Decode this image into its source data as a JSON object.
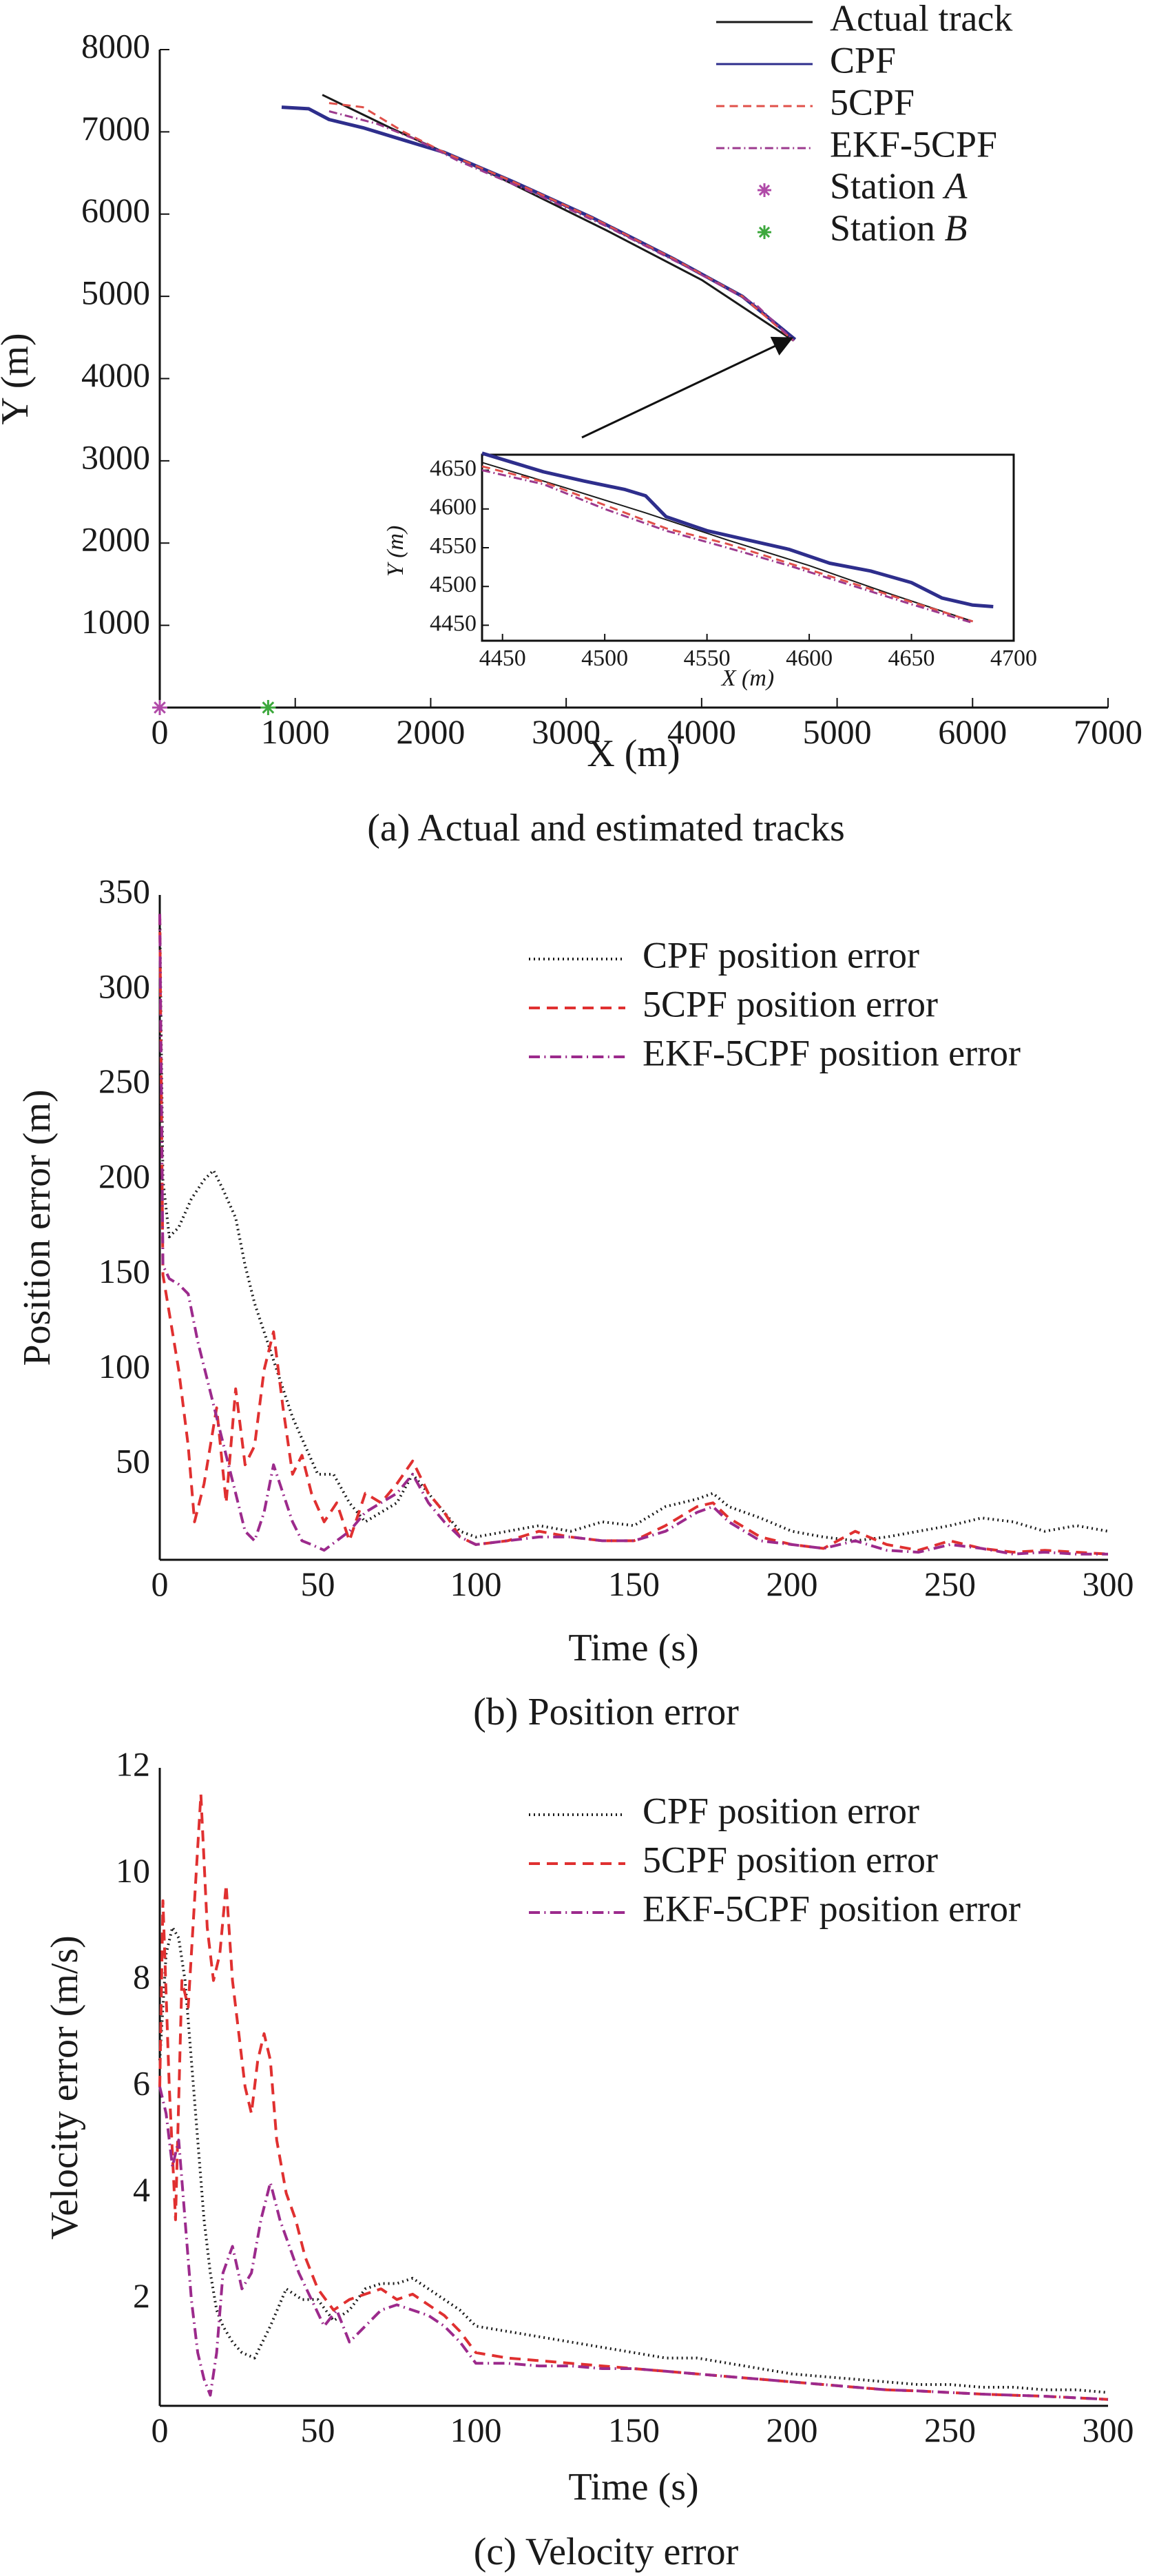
{
  "chart_data": [
    {
      "type": "line",
      "title": "Actual and estimated tracks",
      "caption": "(a) Actual and estimated tracks",
      "xlabel": "X (m)",
      "ylabel": "Y (m)",
      "xlim": [
        0,
        7000
      ],
      "ylim": [
        0,
        8000
      ],
      "xticks": [
        0,
        1000,
        2000,
        3000,
        4000,
        5000,
        6000,
        7000
      ],
      "xtick_labels": [
        "0",
        "1000",
        "2000",
        "3000",
        "4000",
        "5000",
        "6000",
        "7000"
      ],
      "yticks": [
        1000,
        2000,
        3000,
        4000,
        5000,
        6000,
        7000,
        8000
      ],
      "ytick_labels": [
        "1000",
        "2000",
        "3000",
        "4000",
        "5000",
        "6000",
        "7000",
        "8000"
      ],
      "legend_position": "top-right",
      "series": [
        {
          "name": "Actual track",
          "color": "#1a1a1a",
          "dash": "solid",
          "x": [
            1200,
            1700,
            2500,
            3300,
            4000,
            4680
          ],
          "y": [
            7450,
            7050,
            6450,
            5800,
            5200,
            4460
          ]
        },
        {
          "name": "CPF",
          "color": "#2e2e8c",
          "dash": "solid",
          "x": [
            900,
            1100,
            1250,
            1500,
            1800,
            2100,
            2600,
            3200,
            3800,
            4300,
            4690
          ],
          "y": [
            7300,
            7280,
            7150,
            7050,
            6900,
            6750,
            6400,
            5950,
            5450,
            5000,
            4475
          ]
        },
        {
          "name": "5CPF",
          "color": "#e0504a",
          "dash": "dashed",
          "x": [
            1250,
            1500,
            1800,
            2100,
            2600,
            3200,
            3800,
            4300,
            4680
          ],
          "y": [
            7350,
            7300,
            7000,
            6750,
            6400,
            5950,
            5450,
            5000,
            4460
          ]
        },
        {
          "name": "EKF-5CPF",
          "color": "#9c3a8e",
          "dash": "dashdot",
          "x": [
            1250,
            1600,
            1900,
            2200,
            2700,
            3300,
            3900,
            4400,
            4680
          ],
          "y": [
            7250,
            7100,
            6900,
            6650,
            6300,
            5850,
            5350,
            4900,
            4460
          ]
        },
        {
          "name": "Station A",
          "color": "#b04aa8",
          "marker": "asterisk",
          "x": [
            0
          ],
          "y": [
            0
          ]
        },
        {
          "name": "Station B",
          "color": "#3ca83c",
          "marker": "asterisk",
          "x": [
            800
          ],
          "y": [
            0
          ]
        }
      ],
      "arrow_to": {
        "x": 4650,
        "y": 4480
      },
      "inset": {
        "xlabel": "X (m)",
        "ylabel": "Y (m)",
        "xlim": [
          4440,
          4700
        ],
        "ylim": [
          4430,
          4670
        ],
        "xticks": [
          4450,
          4500,
          4550,
          4600,
          4650,
          4700
        ],
        "xtick_labels": [
          "4450",
          "4500",
          "4550",
          "4600",
          "4650",
          "4700"
        ],
        "yticks": [
          4450,
          4500,
          4550,
          4600,
          4650
        ],
        "ytick_labels": [
          "4450",
          "4500",
          "4550",
          "4600",
          "4650"
        ],
        "series": [
          {
            "name": "Actual track",
            "color": "#1a1a1a",
            "dash": "solid",
            "width": 2,
            "x": [
              4440,
              4480,
              4520,
              4560,
              4600,
              4640,
              4680
            ],
            "y": [
              4660,
              4628,
              4595,
              4560,
              4527,
              4490,
              4455
            ]
          },
          {
            "name": "CPF",
            "color": "#2e2e8c",
            "dash": "solid",
            "width": 5,
            "x": [
              4440,
              4455,
              4470,
              4490,
              4510,
              4520,
              4530,
              4550,
              4570,
              4590,
              4610,
              4630,
              4650,
              4665,
              4680,
              4690
            ],
            "y": [
              4672,
              4660,
              4648,
              4636,
              4625,
              4617,
              4590,
              4572,
              4560,
              4548,
              4530,
              4520,
              4505,
              4485,
              4476,
              4474
            ]
          },
          {
            "name": "5CPF",
            "color": "#e0504a",
            "dash": "dashed",
            "width": 3,
            "x": [
              4440,
              4470,
              4500,
              4530,
              4560,
              4590,
              4620,
              4650,
              4680
            ],
            "y": [
              4655,
              4635,
              4605,
              4575,
              4555,
              4530,
              4505,
              4480,
              4455
            ]
          },
          {
            "name": "EKF-5CPF",
            "color": "#9c3a8e",
            "dash": "dashdot",
            "width": 3,
            "x": [
              4440,
              4470,
              4500,
              4530,
              4560,
              4590,
              4620,
              4650,
              4680
            ],
            "y": [
              4650,
              4632,
              4600,
              4572,
              4550,
              4527,
              4502,
              4477,
              4453
            ]
          }
        ]
      }
    },
    {
      "type": "line",
      "title": "Position error",
      "caption": "(b) Position error",
      "xlabel": "Time (s)",
      "ylabel": "Position error (m)",
      "xlim": [
        0,
        300
      ],
      "ylim": [
        0,
        350
      ],
      "xticks": [
        0,
        50,
        100,
        150,
        200,
        250,
        300
      ],
      "xtick_labels": [
        "0",
        "50",
        "100",
        "150",
        "200",
        "250",
        "300"
      ],
      "yticks": [
        50,
        100,
        150,
        200,
        250,
        300,
        350
      ],
      "ytick_labels": [
        "50",
        "100",
        "150",
        "200",
        "250",
        "300",
        "350"
      ],
      "legend_position": "top-right",
      "series": [
        {
          "name": "CPF position error",
          "color": "#1a1a1a",
          "dash": "dotted",
          "x": [
            0,
            1,
            3,
            6,
            10,
            14,
            17,
            20,
            24,
            27,
            30,
            34,
            38,
            42,
            46,
            50,
            55,
            60,
            65,
            70,
            75,
            80,
            85,
            90,
            95,
            100,
            110,
            120,
            130,
            140,
            150,
            160,
            170,
            175,
            180,
            190,
            200,
            210,
            220,
            230,
            240,
            250,
            260,
            270,
            280,
            290,
            300
          ],
          "y": [
            340,
            200,
            170,
            175,
            190,
            200,
            205,
            195,
            180,
            155,
            135,
            115,
            95,
            75,
            60,
            45,
            45,
            30,
            20,
            25,
            30,
            45,
            35,
            25,
            15,
            12,
            15,
            18,
            15,
            20,
            18,
            28,
            32,
            35,
            28,
            22,
            15,
            12,
            10,
            12,
            15,
            18,
            22,
            20,
            15,
            18,
            15
          ]
        },
        {
          "name": "5CPF position error",
          "color": "#e03030",
          "dash": "dashed",
          "x": [
            0,
            1,
            3,
            6,
            9,
            11,
            14,
            18,
            21,
            24,
            27,
            30,
            33,
            36,
            39,
            42,
            45,
            48,
            52,
            56,
            60,
            65,
            70,
            75,
            80,
            85,
            90,
            95,
            100,
            110,
            120,
            130,
            140,
            150,
            160,
            170,
            175,
            180,
            190,
            200,
            210,
            220,
            230,
            240,
            250,
            260,
            270,
            280,
            290,
            300
          ],
          "y": [
            340,
            150,
            130,
            100,
            60,
            20,
            40,
            80,
            30,
            90,
            50,
            60,
            100,
            120,
            80,
            45,
            55,
            35,
            20,
            30,
            10,
            35,
            30,
            40,
            52,
            35,
            25,
            12,
            8,
            10,
            15,
            12,
            10,
            10,
            18,
            28,
            30,
            22,
            12,
            8,
            6,
            15,
            8,
            5,
            10,
            6,
            4,
            5,
            4,
            3
          ]
        },
        {
          "name": "EKF-5CPF position error",
          "color": "#9c2a8c",
          "dash": "dashdot",
          "x": [
            0,
            1,
            3,
            6,
            9,
            12,
            15,
            18,
            21,
            24,
            27,
            30,
            33,
            36,
            39,
            42,
            45,
            48,
            52,
            56,
            60,
            65,
            70,
            75,
            80,
            85,
            90,
            95,
            100,
            110,
            120,
            130,
            140,
            150,
            160,
            170,
            175,
            180,
            190,
            200,
            210,
            220,
            230,
            240,
            250,
            260,
            270,
            280,
            290,
            300
          ],
          "y": [
            340,
            155,
            148,
            145,
            140,
            115,
            95,
            75,
            55,
            35,
            15,
            10,
            25,
            50,
            35,
            20,
            10,
            8,
            5,
            10,
            15,
            25,
            30,
            35,
            45,
            30,
            20,
            12,
            8,
            10,
            12,
            12,
            10,
            10,
            15,
            25,
            28,
            20,
            10,
            8,
            6,
            10,
            5,
            4,
            8,
            6,
            3,
            4,
            3,
            3
          ]
        }
      ]
    },
    {
      "type": "line",
      "title": "Velocity error",
      "caption": "(c) Velocity error",
      "xlabel": "Time (s)",
      "ylabel": "Velocity error (m/s)",
      "xlim": [
        0,
        300
      ],
      "ylim": [
        0,
        12
      ],
      "xticks": [
        0,
        50,
        100,
        150,
        200,
        250,
        300
      ],
      "xtick_labels": [
        "0",
        "50",
        "100",
        "150",
        "200",
        "250",
        "300"
      ],
      "yticks": [
        2,
        4,
        6,
        8,
        10,
        12
      ],
      "ytick_labels": [
        "2",
        "4",
        "6",
        "8",
        "10",
        "12"
      ],
      "legend_position": "top-right",
      "series": [
        {
          "name": "CPF position error",
          "color": "#1a1a1a",
          "dash": "dotted",
          "x": [
            0,
            2,
            4,
            6,
            8,
            10,
            12,
            14,
            16,
            18,
            20,
            23,
            26,
            30,
            35,
            40,
            45,
            50,
            55,
            60,
            65,
            70,
            75,
            80,
            85,
            90,
            95,
            100,
            110,
            120,
            130,
            140,
            150,
            160,
            170,
            180,
            190,
            200,
            210,
            220,
            230,
            240,
            250,
            260,
            270,
            280,
            290,
            300
          ],
          "y": [
            6.5,
            8.5,
            9.0,
            8.8,
            8.0,
            6.5,
            5.0,
            3.5,
            2.5,
            1.8,
            1.5,
            1.2,
            1.0,
            0.9,
            1.5,
            2.2,
            2.0,
            2.0,
            1.6,
            1.8,
            2.2,
            2.3,
            2.3,
            2.4,
            2.2,
            2.0,
            1.8,
            1.5,
            1.4,
            1.3,
            1.2,
            1.1,
            1.0,
            0.9,
            0.9,
            0.8,
            0.7,
            0.6,
            0.55,
            0.5,
            0.45,
            0.4,
            0.4,
            0.35,
            0.35,
            0.3,
            0.3,
            0.25
          ]
        },
        {
          "name": "5CPF position error",
          "color": "#e03030",
          "dash": "dashed",
          "x": [
            0,
            1,
            3,
            5,
            7,
            9,
            11,
            13,
            15,
            17,
            19,
            21,
            23,
            25,
            27,
            29,
            31,
            33,
            35,
            37,
            40,
            43,
            46,
            50,
            55,
            60,
            65,
            70,
            75,
            80,
            85,
            90,
            95,
            100,
            110,
            120,
            130,
            140,
            150,
            160,
            170,
            180,
            190,
            200,
            210,
            220,
            230,
            240,
            250,
            260,
            270,
            280,
            290,
            300
          ],
          "y": [
            6.0,
            9.5,
            6.0,
            3.5,
            8.0,
            7.5,
            9.5,
            11.5,
            9.0,
            8.0,
            8.5,
            9.8,
            8.0,
            7.0,
            6.0,
            5.5,
            6.5,
            7.0,
            6.5,
            5.0,
            4.0,
            3.5,
            2.8,
            2.2,
            1.8,
            2.0,
            2.1,
            2.2,
            2.0,
            2.1,
            1.9,
            1.7,
            1.4,
            1.0,
            0.9,
            0.85,
            0.8,
            0.75,
            0.7,
            0.65,
            0.6,
            0.55,
            0.5,
            0.45,
            0.4,
            0.35,
            0.3,
            0.28,
            0.25,
            0.22,
            0.2,
            0.18,
            0.15,
            0.12
          ]
        },
        {
          "name": "EKF-5CPF position error",
          "color": "#9c2a8c",
          "dash": "dashdot",
          "x": [
            0,
            2,
            4,
            6,
            8,
            10,
            12,
            14,
            16,
            18,
            20,
            23,
            26,
            29,
            32,
            35,
            38,
            41,
            44,
            48,
            52,
            56,
            60,
            65,
            70,
            75,
            80,
            85,
            90,
            95,
            100,
            110,
            120,
            130,
            140,
            150,
            160,
            170,
            180,
            190,
            200,
            210,
            220,
            230,
            240,
            250,
            260,
            270,
            280,
            290,
            300
          ],
          "y": [
            6.0,
            5.5,
            4.5,
            5.0,
            3.5,
            2.0,
            1.0,
            0.5,
            0.2,
            1.0,
            2.5,
            3.0,
            2.2,
            2.5,
            3.5,
            4.2,
            3.5,
            3.0,
            2.5,
            2.0,
            1.5,
            1.8,
            1.2,
            1.5,
            1.8,
            1.9,
            1.8,
            1.7,
            1.5,
            1.2,
            0.8,
            0.8,
            0.75,
            0.75,
            0.7,
            0.7,
            0.65,
            0.6,
            0.55,
            0.5,
            0.45,
            0.4,
            0.35,
            0.3,
            0.28,
            0.25,
            0.22,
            0.2,
            0.18,
            0.15,
            0.12
          ]
        }
      ]
    }
  ]
}
